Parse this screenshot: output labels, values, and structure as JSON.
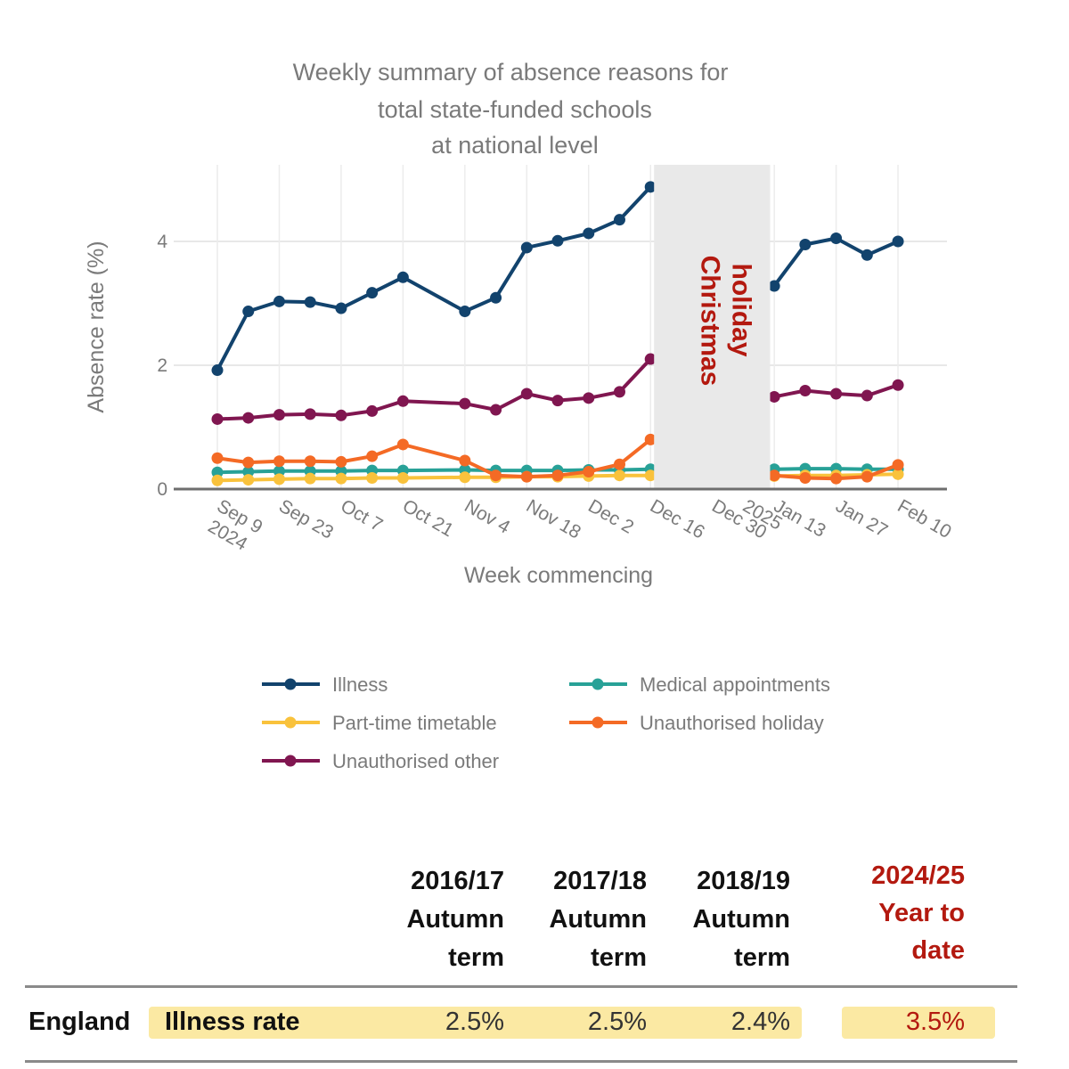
{
  "chart_data": {
    "type": "line",
    "title_lines": [
      "Weekly summary of absence reasons for",
      "total state-funded schools",
      "at national level"
    ],
    "xlabel": "Week commencing",
    "ylabel": "Absence rate (%)",
    "ylim": [
      0,
      5.2
    ],
    "yticks": [
      0,
      2,
      4
    ],
    "grid": true,
    "x_week_ticks": [
      {
        "week": 0,
        "label": [
          "Sep 9",
          "2024"
        ]
      },
      {
        "week": 2,
        "label": [
          "Sep 23"
        ]
      },
      {
        "week": 4,
        "label": [
          "Oct 7"
        ]
      },
      {
        "week": 6,
        "label": [
          "Oct 21"
        ]
      },
      {
        "week": 8,
        "label": [
          "Nov 4"
        ]
      },
      {
        "week": 10,
        "label": [
          "Nov 18"
        ]
      },
      {
        "week": 12,
        "label": [
          "Dec 2"
        ]
      },
      {
        "week": 14,
        "label": [
          "Dec 16"
        ]
      },
      {
        "week": 16,
        "label": [
          "Dec 30"
        ]
      },
      {
        "week": 17,
        "label": [
          "2025"
        ]
      },
      {
        "week": 18,
        "label": [
          "Jan 13"
        ]
      },
      {
        "week": 20,
        "label": [
          "Jan 27"
        ]
      },
      {
        "week": 22,
        "label": [
          "Feb 10"
        ]
      }
    ],
    "holiday": {
      "label_lines": [
        "Christmas",
        "holiday"
      ],
      "start_week": 14,
      "end_week": 17.75
    },
    "legend_position": "bottom",
    "series": [
      {
        "name": "Illness",
        "color": "#12436d",
        "segments": [
          {
            "weeks": [
              0,
              1,
              2,
              3,
              4,
              5,
              6,
              8,
              9,
              10,
              11,
              12,
              13,
              14
            ],
            "values": [
              1.92,
              2.87,
              3.03,
              3.02,
              2.92,
              3.17,
              3.42,
              2.87,
              3.09,
              3.9,
              4.01,
              4.13,
              4.35,
              4.88
            ]
          },
          {
            "weeks": [
              18,
              19,
              20,
              21,
              22
            ],
            "values": [
              3.28,
              3.95,
              4.05,
              3.78,
              4.0
            ]
          }
        ]
      },
      {
        "name": "Medical appointments",
        "color": "#28a197",
        "segments": [
          {
            "weeks": [
              0,
              1,
              2,
              3,
              4,
              5,
              6,
              8,
              9,
              10,
              11,
              12,
              13,
              14
            ],
            "values": [
              0.27,
              0.28,
              0.29,
              0.29,
              0.29,
              0.3,
              0.3,
              0.31,
              0.3,
              0.3,
              0.3,
              0.31,
              0.31,
              0.32
            ]
          },
          {
            "weeks": [
              18,
              19,
              20,
              21,
              22
            ],
            "values": [
              0.32,
              0.33,
              0.33,
              0.32,
              0.32
            ]
          }
        ]
      },
      {
        "name": "Part-time timetable",
        "color": "#f9c23c",
        "segments": [
          {
            "weeks": [
              0,
              1,
              2,
              3,
              4,
              5,
              6,
              8,
              9,
              10,
              11,
              12,
              13,
              14
            ],
            "values": [
              0.14,
              0.15,
              0.16,
              0.17,
              0.17,
              0.18,
              0.18,
              0.19,
              0.19,
              0.2,
              0.2,
              0.21,
              0.22,
              0.22
            ]
          },
          {
            "weeks": [
              18,
              19,
              20,
              21,
              22
            ],
            "values": [
              0.21,
              0.22,
              0.22,
              0.23,
              0.24
            ]
          }
        ]
      },
      {
        "name": "Unauthorised holiday",
        "color": "#f46a25",
        "segments": [
          {
            "weeks": [
              0,
              1,
              2,
              3,
              4,
              5,
              6,
              8,
              9,
              10,
              11,
              12,
              13,
              14
            ],
            "values": [
              0.5,
              0.43,
              0.45,
              0.45,
              0.44,
              0.53,
              0.72,
              0.46,
              0.22,
              0.2,
              0.22,
              0.28,
              0.4,
              0.8
            ]
          },
          {
            "weeks": [
              18,
              19,
              20,
              21,
              22
            ],
            "values": [
              0.22,
              0.18,
              0.17,
              0.2,
              0.39
            ]
          }
        ]
      },
      {
        "name": "Unauthorised other",
        "color": "#801650",
        "segments": [
          {
            "weeks": [
              0,
              1,
              2,
              3,
              4,
              5,
              6,
              8,
              9,
              10,
              11,
              12,
              13,
              14
            ],
            "values": [
              1.13,
              1.15,
              1.2,
              1.21,
              1.19,
              1.26,
              1.42,
              1.38,
              1.28,
              1.54,
              1.43,
              1.47,
              1.57,
              2.1
            ]
          },
          {
            "weeks": [
              18,
              19,
              20,
              21,
              22
            ],
            "values": [
              1.49,
              1.59,
              1.54,
              1.51,
              1.68
            ]
          }
        ]
      }
    ]
  },
  "table": {
    "columns": [
      {
        "header": "2016/17\nAutumn\nterm",
        "value": "2.5%",
        "highlight": false
      },
      {
        "header": "2017/18\nAutumn\nterm",
        "value": "2.5%",
        "highlight": false
      },
      {
        "header": "2018/19\nAutumn\nterm",
        "value": "2.4%",
        "highlight": false
      },
      {
        "header": "2024/25\nYear to\ndate",
        "value": "3.5%",
        "highlight": true
      }
    ],
    "row": {
      "name": "England",
      "metric": "Illness rate"
    },
    "highlight_color": "#b3190f"
  }
}
